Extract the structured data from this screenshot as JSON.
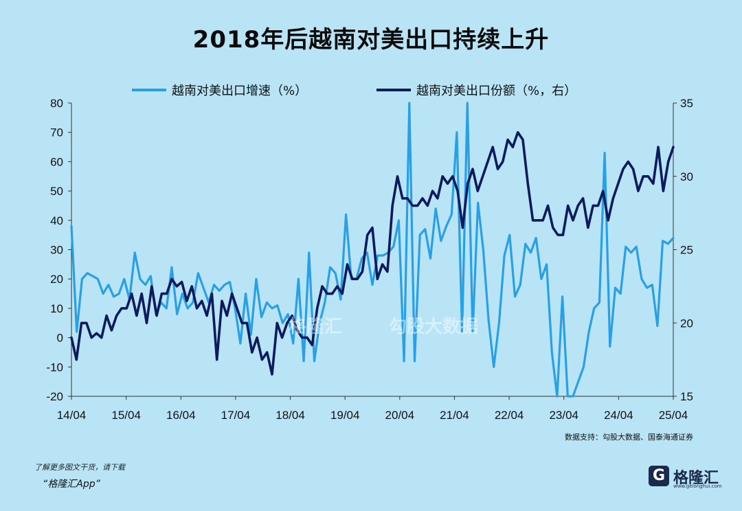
{
  "title": "2018年后越南对美出口持续上升",
  "source": "数据支持：勾股大数据、国泰海通证券",
  "footer": {
    "promo": "了解更多图文干货，请下载",
    "app": "“格隆汇App”"
  },
  "logo": {
    "mark": "G",
    "name": "格隆汇",
    "url": "www.gelonghui.com"
  },
  "watermark": {
    "left": "格隆汇",
    "right": "勾股大数据"
  },
  "colors": {
    "growth": "#2aa0e4",
    "share": "#0d1b5c",
    "background": "#b8e4f6"
  },
  "chart_data": {
    "type": "line",
    "x_ticks": [
      "14/04",
      "15/04",
      "16/04",
      "17/04",
      "18/04",
      "19/04",
      "20/04",
      "21/04",
      "22/04",
      "23/04",
      "24/04",
      "25/04"
    ],
    "ylim_left": [
      -20,
      80
    ],
    "yticks_left": [
      "80",
      "70",
      "60",
      "50",
      "40",
      "30",
      "20",
      "10",
      "0",
      "-10",
      "-20"
    ],
    "ylim_right": [
      15,
      35
    ],
    "yticks_right": [
      "35",
      "30",
      "25",
      "20",
      "15"
    ],
    "series": [
      {
        "name": "越南对美出口增速（%）",
        "axis": "left",
        "values": [
          38,
          2,
          20,
          22,
          21,
          20,
          15,
          18,
          14,
          15,
          20,
          13,
          29,
          20,
          18,
          21,
          8,
          12,
          10,
          24,
          8,
          15,
          10,
          12,
          22,
          17,
          12,
          18,
          16,
          18,
          19,
          10,
          -2,
          15,
          1,
          20,
          7,
          12,
          10,
          11,
          5,
          8,
          -2,
          20,
          -8,
          29,
          -8,
          5,
          12,
          24,
          22,
          13,
          42,
          20,
          20,
          27,
          29,
          18,
          28,
          28,
          29,
          31,
          40,
          -8,
          80,
          -8,
          35,
          37,
          27,
          44,
          33,
          38,
          42,
          70,
          2,
          80,
          2,
          46,
          30,
          6,
          -10,
          5,
          28,
          35,
          14,
          18,
          32,
          29,
          34,
          20,
          25,
          -5,
          -20,
          14,
          -20,
          -20,
          -15,
          -10,
          2,
          10,
          12,
          63,
          -3,
          17,
          15,
          31,
          29,
          31,
          20,
          17,
          18,
          4,
          33,
          32,
          34
        ]
      },
      {
        "name": "越南对美出口份额（%，右）",
        "axis": "right",
        "values": [
          19,
          17.5,
          20,
          20,
          19,
          19.3,
          19,
          20.5,
          19.5,
          20.5,
          21,
          21,
          22,
          20.5,
          22,
          20,
          22.5,
          20.5,
          22,
          22,
          23,
          22.5,
          22.8,
          21.5,
          22.5,
          21,
          21.5,
          20.5,
          22,
          17.5,
          21.5,
          20.5,
          22,
          21,
          20,
          20,
          18,
          19,
          17.5,
          18,
          16.5,
          20,
          19,
          20,
          20.5,
          19.5,
          19,
          19,
          18.5,
          21,
          22.5,
          22,
          22,
          22.5,
          22,
          24,
          23,
          23,
          23.5,
          26,
          26.5,
          23,
          24,
          23.5,
          28,
          30,
          28.5,
          28.5,
          28,
          28,
          28.5,
          28,
          29,
          28.5,
          30,
          29.5,
          30,
          29,
          26.5,
          29.5,
          30.5,
          29,
          30,
          31,
          32,
          30.5,
          31,
          32.5,
          32,
          33,
          32.5,
          29.5,
          27,
          27,
          27,
          28,
          26.5,
          26,
          26,
          28,
          27,
          28,
          28.5,
          26.5,
          28,
          28,
          29,
          27,
          28.5,
          29.5,
          30.5,
          31,
          30.5,
          29,
          30,
          30,
          29.5,
          32,
          29,
          31,
          32
        ]
      }
    ],
    "grid": false,
    "legend": "top"
  }
}
